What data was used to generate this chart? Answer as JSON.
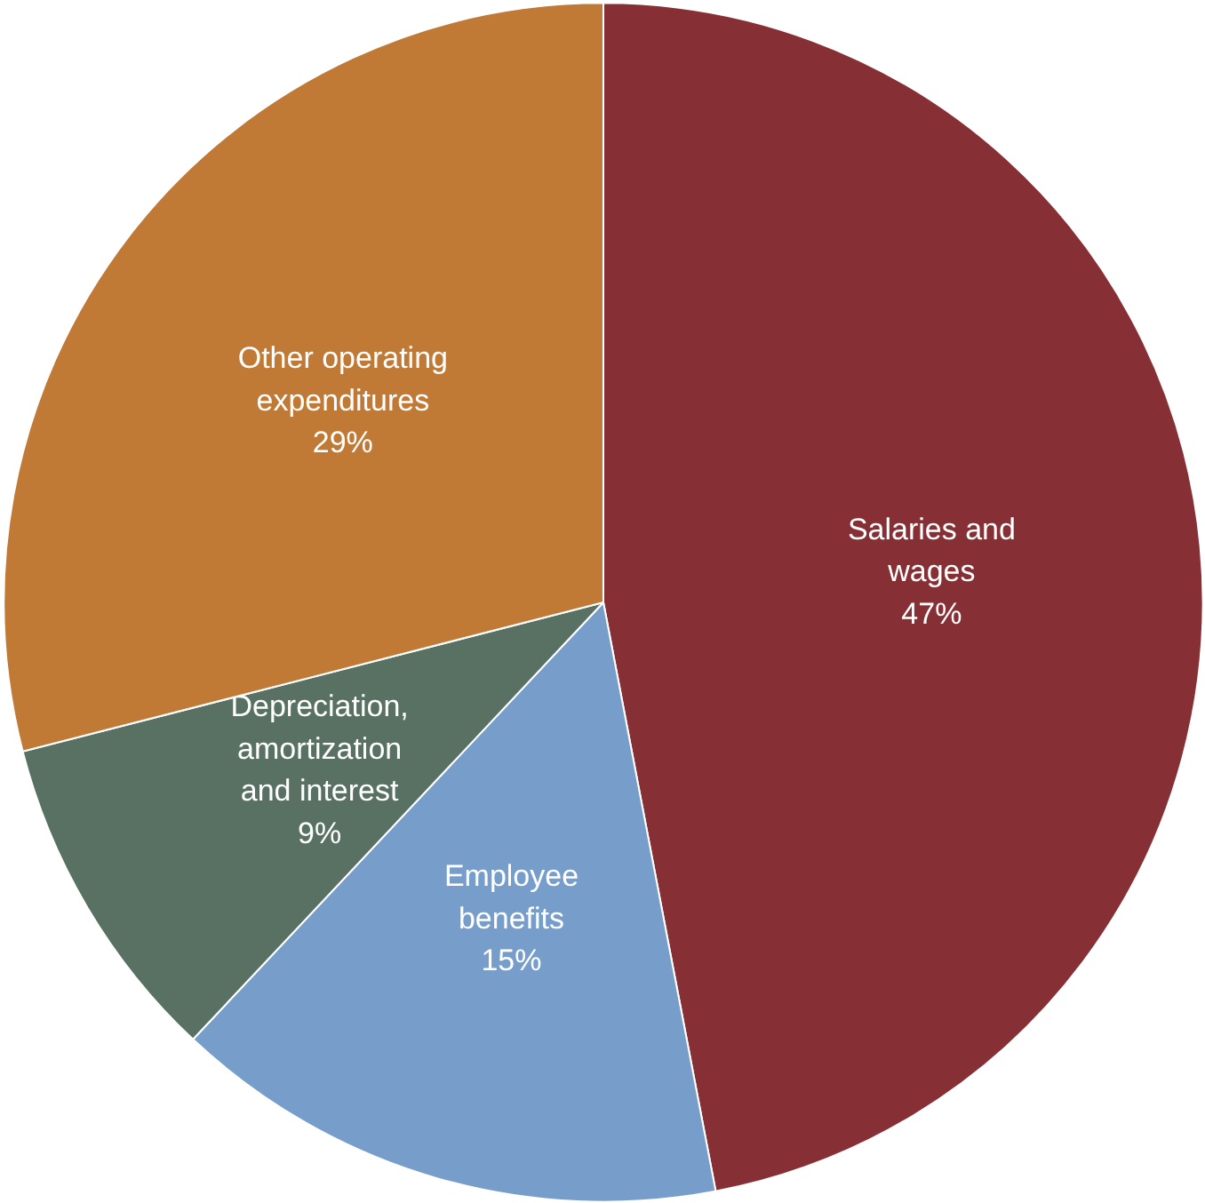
{
  "chart_data": {
    "type": "pie",
    "categories": [
      "Salaries and\nwages",
      "Employee\nbenefits",
      "Depreciation,\namortization\nand interest",
      "Other operating\nexpenditures"
    ],
    "values": [
      47,
      15,
      9,
      29
    ],
    "colors": [
      "#862f34",
      "#779ecb",
      "#587162",
      "#c07a36"
    ],
    "value_labels": [
      "47%",
      "15%",
      "9%",
      "29%"
    ]
  }
}
